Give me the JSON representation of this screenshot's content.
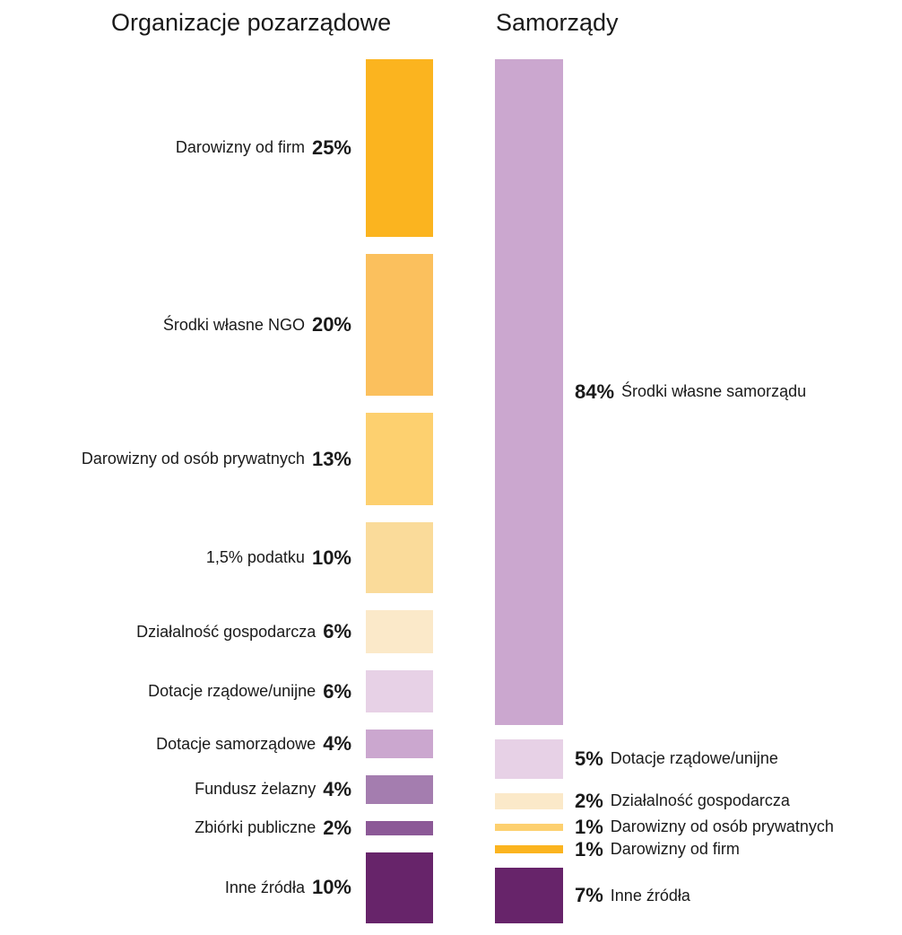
{
  "chart_data": [
    {
      "type": "bar",
      "title": "Organizacje pozarządowe",
      "segments": [
        {
          "label": "Darowizny od firm",
          "pct": "25%",
          "value": 25,
          "color": "#FBB41F"
        },
        {
          "label": "Środki własne NGO",
          "pct": "20%",
          "value": 20,
          "color": "#FBC05D"
        },
        {
          "label": "Darowizny od osób prywatnych",
          "pct": "13%",
          "value": 13,
          "color": "#FDD06F"
        },
        {
          "label": "1,5% podatku",
          "pct": "10%",
          "value": 10,
          "color": "#FADB9A"
        },
        {
          "label": "Działalność gospodarcza",
          "pct": "6%",
          "value": 6,
          "color": "#FBE9C9"
        },
        {
          "label": "Dotacje rządowe/unijne",
          "pct": "6%",
          "value": 6,
          "color": "#E7D1E6"
        },
        {
          "label": "Dotacje samorządowe",
          "pct": "4%",
          "value": 4,
          "color": "#CBA7CF"
        },
        {
          "label": "Fundusz żelazny",
          "pct": "4%",
          "value": 4,
          "color": "#A47DAF"
        },
        {
          "label": "Zbiórki publiczne",
          "pct": "2%",
          "value": 2,
          "color": "#8C5997"
        },
        {
          "label": "Inne źródła",
          "pct": "10%",
          "value": 10,
          "color": "#67246A"
        }
      ]
    },
    {
      "type": "bar",
      "title": "Samorządy",
      "segments": [
        {
          "label": "Środki własne samorządu",
          "pct": "84%",
          "value": 84,
          "color": "#CBA7CF"
        },
        {
          "label": "Dotacje rządowe/unijne",
          "pct": "5%",
          "value": 5,
          "color": "#E7D1E6"
        },
        {
          "label": "Działalność gospodarcza",
          "pct": "2%",
          "value": 2,
          "color": "#FBE9C9"
        },
        {
          "label": "Darowizny od osób prywatnych",
          "pct": "1%",
          "value": 1,
          "color": "#FDD06F"
        },
        {
          "label": "Darowizny od firm",
          "pct": "1%",
          "value": 1,
          "color": "#FBB41F"
        },
        {
          "label": "Inne źródła",
          "pct": "7%",
          "value": 7,
          "color": "#67246A"
        }
      ]
    }
  ]
}
